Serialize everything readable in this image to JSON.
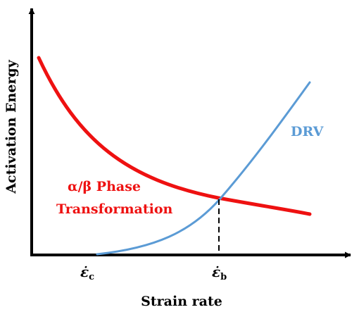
{
  "axes": {
    "x_label": "Strain rate",
    "y_label": "Activation Energy"
  },
  "ticks": {
    "c": {
      "symbol": "ε̇",
      "subscript": "c"
    },
    "b": {
      "symbol": "ε̇",
      "subscript": "b"
    }
  },
  "series": {
    "phase": {
      "line1": "α/β Phase",
      "line2": "Transformation",
      "color": "#ee1111"
    },
    "drv": {
      "label": "DRV",
      "color": "#5b9bd5"
    }
  },
  "colors": {
    "axis": "#000000"
  }
}
